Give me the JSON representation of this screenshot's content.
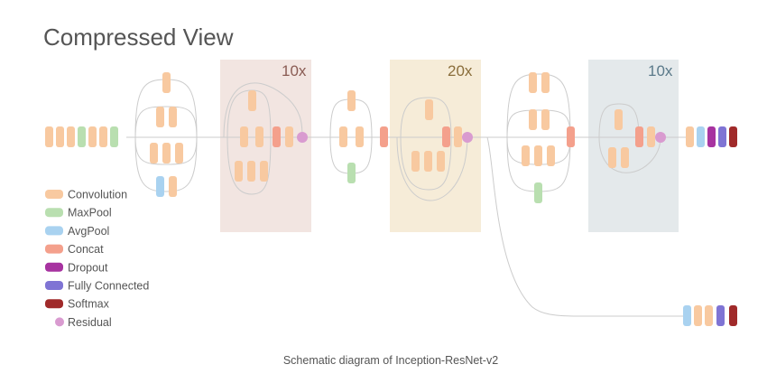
{
  "title": "Compressed View",
  "caption": "Schematic diagram of Inception-ResNet-v2",
  "repeats": {
    "block_a": "10x",
    "block_b": "20x",
    "block_c": "10x"
  },
  "colors": {
    "convolution": "#f8c9a0",
    "maxpool": "#b9dfb0",
    "avgpool": "#a9d2f0",
    "concat": "#f4a08c",
    "dropout": "#a733a0",
    "fully_connected": "#7f74d4",
    "softmax": "#a02a2a",
    "residual": "#d99bd0",
    "block_a_bg": "#f2e5e1",
    "block_b_bg": "#f6ecd8",
    "block_c_bg": "#e4e9eb",
    "block_a_text": "#8a5c54",
    "block_b_text": "#8a6e3c",
    "block_c_text": "#5b7a8a"
  },
  "legend": [
    {
      "label": "Convolution",
      "color_key": "convolution"
    },
    {
      "label": "MaxPool",
      "color_key": "maxpool"
    },
    {
      "label": "AvgPool",
      "color_key": "avgpool"
    },
    {
      "label": "Concat",
      "color_key": "concat"
    },
    {
      "label": "Dropout",
      "color_key": "dropout"
    },
    {
      "label": "Fully Connected",
      "color_key": "fully_connected"
    },
    {
      "label": "Softmax",
      "color_key": "softmax"
    },
    {
      "label": "Residual",
      "color_key": "residual"
    }
  ]
}
